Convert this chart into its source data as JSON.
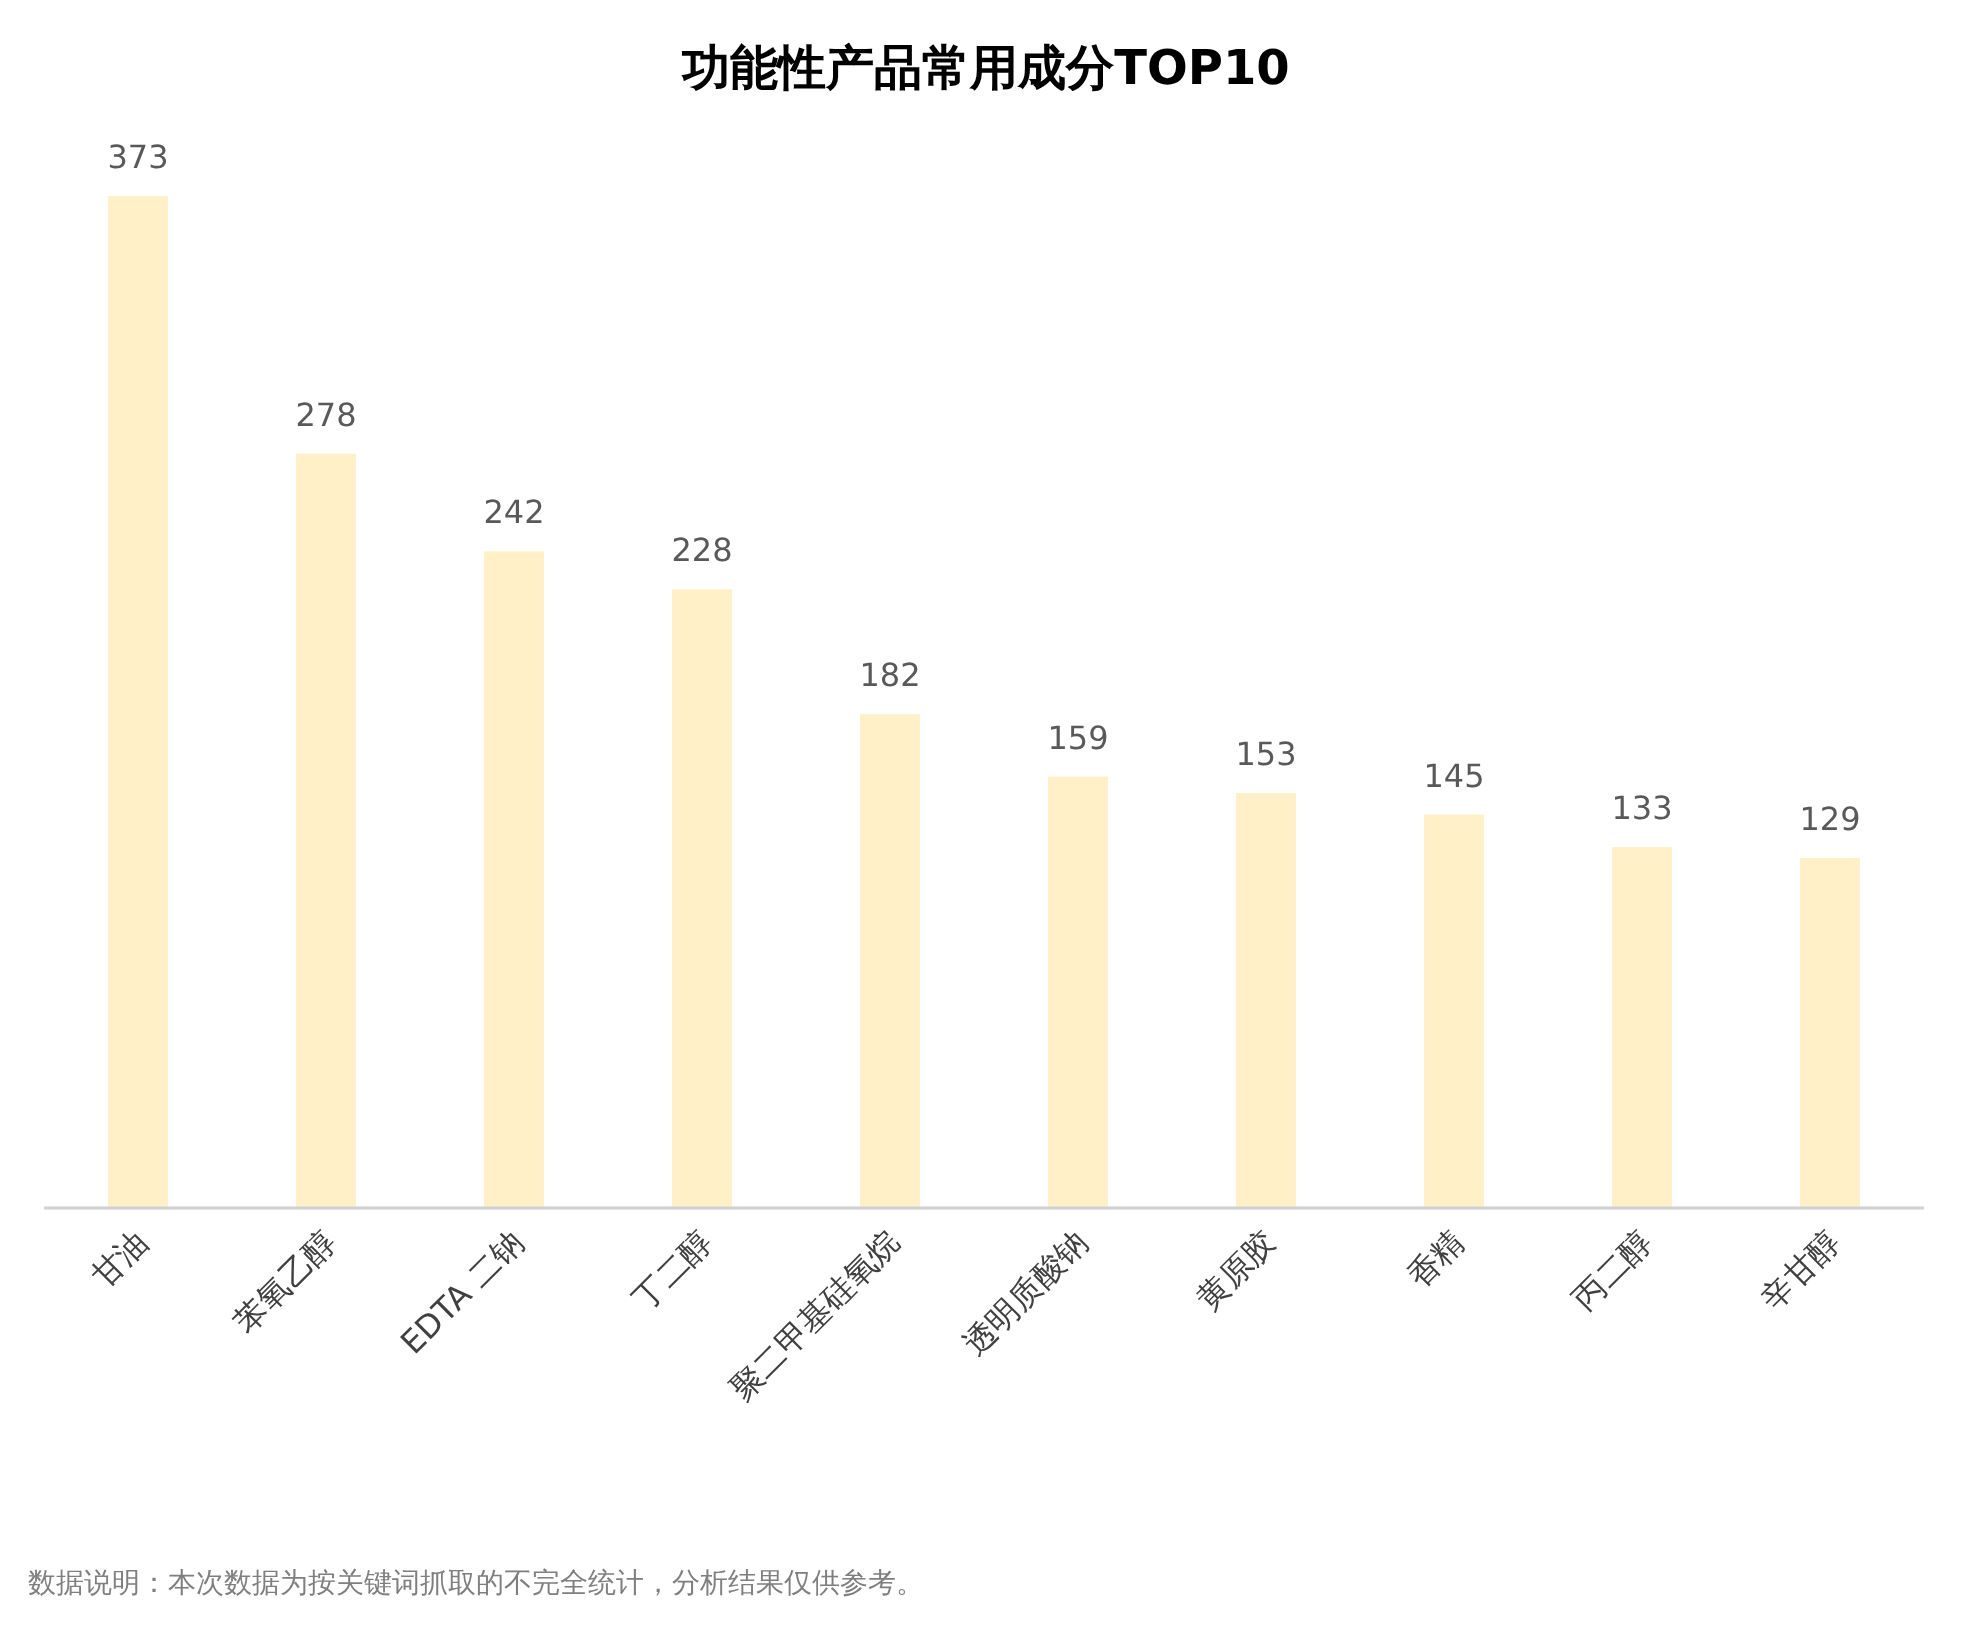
{
  "chart_data": {
    "type": "bar",
    "title": "功能性产品常用成分TOP10",
    "categories": [
      "甘油",
      "苯氧乙醇",
      "EDTA 二钠",
      "丁二醇",
      "聚二甲基硅氧烷",
      "透明质酸钠",
      "黄原胶",
      "香精",
      "丙二醇",
      "辛甘醇"
    ],
    "values": [
      373,
      278,
      242,
      228,
      182,
      159,
      153,
      145,
      133,
      129
    ],
    "color": "#fff0c8",
    "data_labels": true,
    "annotations": [
      "数据说明：本次数据为按关键词抓取的不完全统计，分析结果仅供参考。"
    ]
  }
}
